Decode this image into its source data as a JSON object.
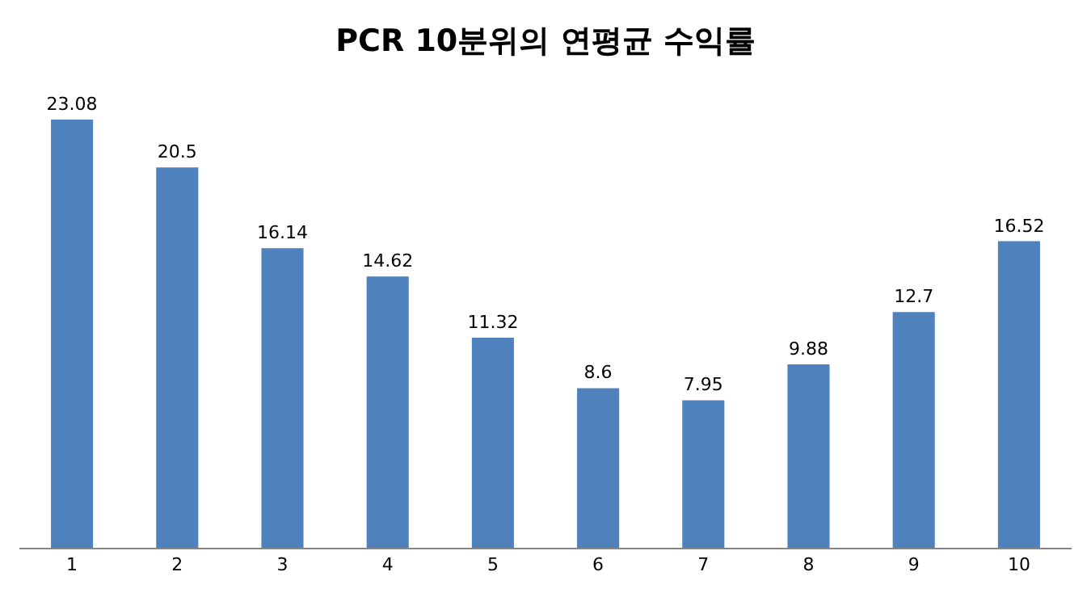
{
  "chart_data": {
    "type": "bar",
    "title": "PCR 10분위의 연평균 수익률",
    "categories": [
      "1",
      "2",
      "3",
      "4",
      "5",
      "6",
      "7",
      "8",
      "9",
      "10"
    ],
    "values": [
      23.08,
      20.5,
      16.14,
      14.62,
      11.32,
      8.6,
      7.95,
      9.88,
      12.7,
      16.52
    ],
    "color": "#4f81bd",
    "data_labels": true,
    "tick_labels": "x"
  }
}
